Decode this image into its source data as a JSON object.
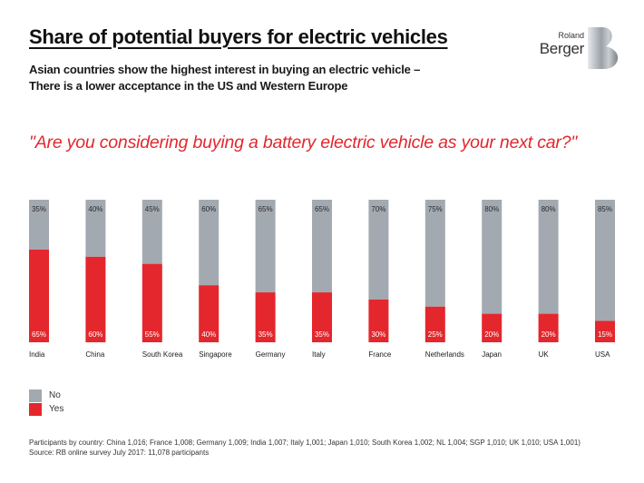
{
  "header": {
    "title": "Share of potential buyers for electric vehicles",
    "subtitle_line1": "Asian countries show the highest interest in buying an electric vehicle –",
    "subtitle_line2": "There is a lower acceptance in the US and Western Europe",
    "logo_top": "Roland",
    "logo_bottom": "Berger"
  },
  "question": "\"Are you considering buying a battery electric vehicle as your next car?\"",
  "chart_data": {
    "type": "bar",
    "stacked": true,
    "orientation": "vertical",
    "title": "Share of potential buyers for electric vehicles",
    "xlabel": "",
    "ylabel": "",
    "ylim": [
      0,
      100
    ],
    "unit": "%",
    "grid": false,
    "legend_position": "bottom-left",
    "categories": [
      "India",
      "China",
      "South Korea",
      "Singapore",
      "Germany",
      "Italy",
      "France",
      "Netherlands",
      "Japan",
      "UK",
      "USA"
    ],
    "series": [
      {
        "name": "Yes",
        "color": "#e3272d",
        "values": [
          65,
          60,
          55,
          40,
          35,
          35,
          30,
          25,
          20,
          20,
          15
        ]
      },
      {
        "name": "No",
        "color": "#a3a9b1",
        "values": [
          35,
          40,
          45,
          60,
          65,
          65,
          70,
          75,
          80,
          80,
          85
        ]
      }
    ]
  },
  "legend": {
    "items": [
      {
        "label": "No",
        "color": "#a3a9b1"
      },
      {
        "label": "Yes",
        "color": "#e3272d"
      }
    ]
  },
  "footer": {
    "participants": "Participants by country: China 1,016; France 1,008; Germany 1,009; India 1,007; Italy 1,001; Japan 1,010; South Korea 1,002; NL 1,004; SGP 1,010; UK 1,010; USA 1,001)",
    "source": "Source: RB online survey July 2017:  11,078 participants"
  },
  "colors": {
    "accent": "#e3272d",
    "no_gray": "#a3a9b1",
    "text_dark": "#1a1a1a"
  }
}
